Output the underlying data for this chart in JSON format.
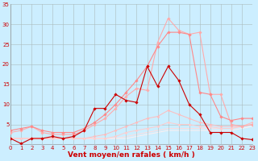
{
  "title": "",
  "xlabel": "Vent moyen/en rafales ( km/h )",
  "xlim": [
    0,
    23
  ],
  "ylim": [
    0,
    35
  ],
  "yticks": [
    5,
    10,
    15,
    20,
    25,
    30,
    35
  ],
  "xticks": [
    0,
    1,
    2,
    3,
    4,
    5,
    6,
    7,
    8,
    9,
    10,
    11,
    12,
    13,
    14,
    15,
    16,
    17,
    18,
    19,
    20,
    21,
    22,
    23
  ],
  "bg_color": "#cceeff",
  "grid_color": "#aabbbb",
  "lines": [
    {
      "y": [
        1.5,
        0.2,
        1.5,
        1.5,
        2.0,
        1.5,
        2.0,
        3.5,
        9.0,
        9.0,
        12.5,
        11.0,
        10.5,
        19.5,
        14.5,
        19.5,
        16.0,
        10.0,
        7.5,
        3.0,
        3.0,
        3.0,
        1.5,
        1.2
      ],
      "color": "#cc0000",
      "lw": 0.8,
      "marker": "D",
      "ms": 1.8,
      "zorder": 5
    },
    {
      "y": [
        3.0,
        3.5,
        4.5,
        3.0,
        2.5,
        2.5,
        2.5,
        3.5,
        5.0,
        6.5,
        9.0,
        12.0,
        14.0,
        13.5,
        25.5,
        31.5,
        28.5,
        27.5,
        28.0,
        12.5,
        12.5,
        5.0,
        4.5,
        5.0
      ],
      "color": "#ffaaaa",
      "lw": 0.8,
      "marker": "D",
      "ms": 1.8,
      "zorder": 3
    },
    {
      "y": [
        3.5,
        4.0,
        4.5,
        3.5,
        3.0,
        3.0,
        3.0,
        4.0,
        5.5,
        7.5,
        10.0,
        13.0,
        16.0,
        19.5,
        24.5,
        28.0,
        28.0,
        27.5,
        13.0,
        12.5,
        7.0,
        6.0,
        6.5,
        6.5
      ],
      "color": "#ff8888",
      "lw": 0.8,
      "marker": "D",
      "ms": 1.8,
      "zorder": 4
    },
    {
      "y": [
        1.5,
        1.5,
        1.5,
        1.5,
        1.5,
        1.5,
        1.5,
        1.5,
        2.0,
        2.5,
        3.5,
        4.5,
        5.5,
        6.5,
        7.0,
        8.5,
        7.5,
        6.5,
        5.5,
        5.0,
        4.5,
        4.5,
        4.5,
        5.5
      ],
      "color": "#ffbbbb",
      "lw": 0.7,
      "marker": "D",
      "ms": 1.5,
      "zorder": 2
    },
    {
      "y": [
        1.5,
        1.5,
        1.5,
        1.5,
        1.5,
        1.5,
        1.5,
        1.5,
        1.5,
        1.5,
        2.0,
        3.0,
        3.5,
        4.0,
        4.5,
        5.5,
        5.0,
        5.0,
        4.5,
        4.5,
        4.0,
        4.0,
        4.5,
        5.0
      ],
      "color": "#ffcccc",
      "lw": 0.7,
      "marker": "D",
      "ms": 1.5,
      "zorder": 2
    },
    {
      "y": [
        1.5,
        1.5,
        1.5,
        1.5,
        1.5,
        1.5,
        1.5,
        1.5,
        1.5,
        1.5,
        1.5,
        2.0,
        2.5,
        3.0,
        3.5,
        4.0,
        4.0,
        4.0,
        4.0,
        4.0,
        4.0,
        4.0,
        4.5,
        5.0
      ],
      "color": "#ffdddd",
      "lw": 0.7,
      "marker": null,
      "ms": 0,
      "zorder": 1
    },
    {
      "y": [
        1.5,
        1.5,
        1.5,
        1.5,
        1.5,
        1.5,
        1.5,
        1.5,
        1.5,
        1.5,
        1.5,
        1.5,
        2.0,
        2.5,
        3.0,
        3.5,
        3.5,
        3.5,
        3.5,
        3.5,
        3.5,
        3.5,
        4.0,
        4.5
      ],
      "color": "#ffeeee",
      "lw": 0.7,
      "marker": null,
      "ms": 0,
      "zorder": 1
    }
  ],
  "tick_label_color": "#cc0000",
  "tick_label_size": 5.0,
  "xlabel_size": 6.5,
  "xlabel_color": "#cc0000"
}
